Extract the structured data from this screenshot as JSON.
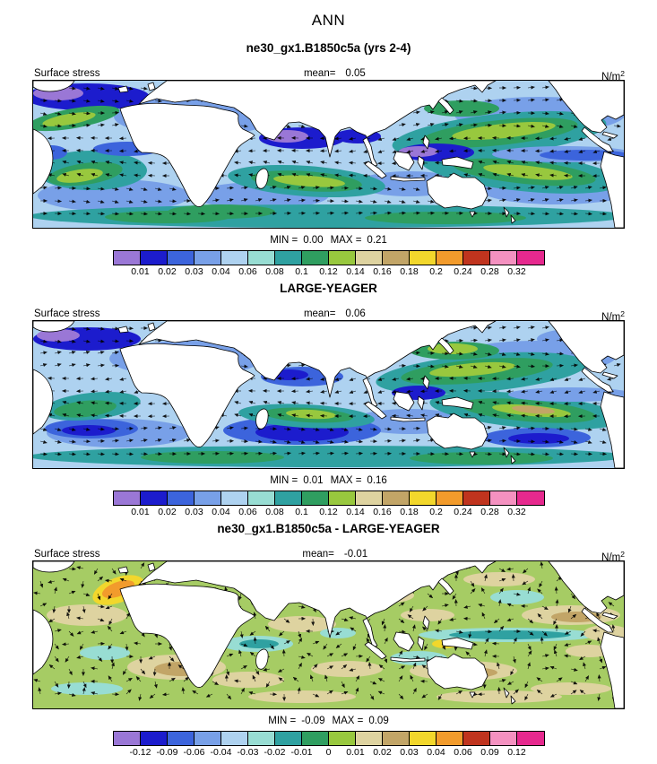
{
  "page_title": "ANN",
  "panels": [
    {
      "title": "ne30_gx1.B1850c5a (yrs 2-4)",
      "field_label": "Surface stress",
      "mean_label": "mean=",
      "mean_value": "0.05",
      "units_base": "N/m",
      "units_exp": "2",
      "min_label": "MIN =",
      "min_value": "0.00",
      "max_label": "MAX =",
      "max_value": "0.21",
      "map_base_color": "#aed2f0",
      "colorbar": {
        "colors": [
          "#9a77d6",
          "#1c1ccd",
          "#3c64dc",
          "#78a0e8",
          "#aed2f0",
          "#98ddd3",
          "#2fa1a1",
          "#2f9e60",
          "#98c83e",
          "#ded3a0",
          "#c2a567",
          "#f2d72c",
          "#f29b2c",
          "#c0341e",
          "#f491c0",
          "#e6298e"
        ],
        "tick_labels": [
          "0.01",
          "0.02",
          "0.03",
          "0.04",
          "0.06",
          "0.08",
          "0.1",
          "0.12",
          "0.14",
          "0.16",
          "0.18",
          "0.2",
          "0.24",
          "0.28",
          "0.32"
        ]
      }
    },
    {
      "title": "LARGE-YEAGER",
      "field_label": "Surface stress",
      "mean_label": "mean=",
      "mean_value": "0.06",
      "units_base": "N/m",
      "units_exp": "2",
      "min_label": "MIN =",
      "min_value": "0.01",
      "max_label": "MAX =",
      "max_value": "0.16",
      "map_base_color": "#aed2f0",
      "colorbar": {
        "colors": [
          "#9a77d6",
          "#1c1ccd",
          "#3c64dc",
          "#78a0e8",
          "#aed2f0",
          "#98ddd3",
          "#2fa1a1",
          "#2f9e60",
          "#98c83e",
          "#ded3a0",
          "#c2a567",
          "#f2d72c",
          "#f29b2c",
          "#c0341e",
          "#f491c0",
          "#e6298e"
        ],
        "tick_labels": [
          "0.01",
          "0.02",
          "0.03",
          "0.04",
          "0.06",
          "0.08",
          "0.1",
          "0.12",
          "0.14",
          "0.16",
          "0.18",
          "0.2",
          "0.24",
          "0.28",
          "0.32"
        ]
      }
    },
    {
      "title": "ne30_gx1.B1850c5a - LARGE-YEAGER",
      "field_label": "Surface stress",
      "mean_label": "mean=",
      "mean_value": "-0.01",
      "units_base": "N/m",
      "units_exp": "2",
      "min_label": "MIN =",
      "min_value": "-0.09",
      "max_label": "MAX =",
      "max_value": "0.09",
      "map_base_color": "#a6cc64",
      "colorbar": {
        "colors": [
          "#9a77d6",
          "#1c1ccd",
          "#3c64dc",
          "#78a0e8",
          "#aed2f0",
          "#98ddd3",
          "#2fa1a1",
          "#2f9e60",
          "#98c83e",
          "#ded3a0",
          "#c2a567",
          "#f2d72c",
          "#f29b2c",
          "#c0341e",
          "#f491c0",
          "#e6298e"
        ],
        "tick_labels": [
          "-0.12",
          "-0.09",
          "-0.06",
          "-0.04",
          "-0.03",
          "-0.02",
          "-0.01",
          "0",
          "0.01",
          "0.02",
          "0.03",
          "0.04",
          "0.06",
          "0.09",
          "0.12"
        ]
      }
    }
  ],
  "chart_data": [
    {
      "type": "heatmap",
      "subtype": "global lat-lon map with surface wind-stress vector arrows",
      "title": "ne30_gx1.B1850c5a (yrs 2-4)",
      "season": "ANN",
      "variable": "Surface stress",
      "units": "N/m^2",
      "mean": 0.05,
      "min": 0.0,
      "max": 0.21,
      "contour_levels": [
        0.01,
        0.02,
        0.03,
        0.04,
        0.06,
        0.08,
        0.1,
        0.12,
        0.14,
        0.16,
        0.18,
        0.2,
        0.24,
        0.28,
        0.32
      ],
      "legend_position": "bottom colorbar"
    },
    {
      "type": "heatmap",
      "subtype": "global lat-lon map with surface wind-stress vector arrows",
      "title": "LARGE-YEAGER",
      "season": "ANN",
      "variable": "Surface stress",
      "units": "N/m^2",
      "mean": 0.06,
      "min": 0.01,
      "max": 0.16,
      "contour_levels": [
        0.01,
        0.02,
        0.03,
        0.04,
        0.06,
        0.08,
        0.1,
        0.12,
        0.14,
        0.16,
        0.18,
        0.2,
        0.24,
        0.28,
        0.32
      ],
      "legend_position": "bottom colorbar"
    },
    {
      "type": "heatmap",
      "subtype": "difference map (model minus observations) with vector arrows",
      "title": "ne30_gx1.B1850c5a - LARGE-YEAGER",
      "season": "ANN",
      "variable": "Surface stress difference",
      "units": "N/m^2",
      "mean": -0.01,
      "min": -0.09,
      "max": 0.09,
      "contour_levels": [
        -0.12,
        -0.09,
        -0.06,
        -0.04,
        -0.03,
        -0.02,
        -0.01,
        0,
        0.01,
        0.02,
        0.03,
        0.04,
        0.06,
        0.09,
        0.12
      ],
      "legend_position": "bottom colorbar"
    }
  ]
}
